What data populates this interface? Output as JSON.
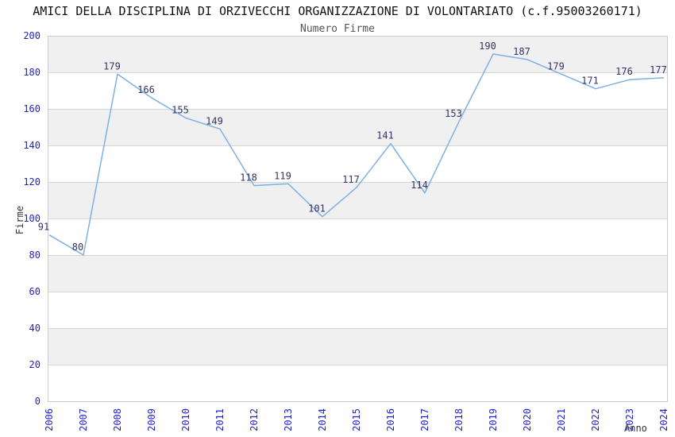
{
  "chart_data": {
    "type": "line",
    "title": "AMICI DELLA DISCIPLINA DI ORZIVECCHI ORGANIZZAZIONE DI VOLONTARIATO (c.f.95003260171)",
    "subtitle": "Numero Firme",
    "xlabel": "Anno",
    "ylabel": "Firme",
    "categories": [
      "2006",
      "2007",
      "2008",
      "2009",
      "2010",
      "2011",
      "2012",
      "2013",
      "2014",
      "2015",
      "2016",
      "2017",
      "2018",
      "2019",
      "2020",
      "2021",
      "2022",
      "2023",
      "2024"
    ],
    "values": [
      91,
      80,
      179,
      166,
      155,
      149,
      118,
      119,
      101,
      117,
      141,
      114,
      153,
      190,
      187,
      179,
      171,
      176,
      177
    ],
    "ylim": [
      0,
      200
    ],
    "ytick_step": 20,
    "grid": true,
    "legend_position": "none",
    "show_data_labels": true,
    "colors": {
      "line": "#7fb0e4",
      "tick_label": "#2222cc",
      "data_label": "#333366",
      "band_even": "#ffffff",
      "band_odd": "#f0f0f0",
      "gridline": "#d6d6d6",
      "plot_border": "#cccccc",
      "axis_title": "#333333"
    }
  }
}
